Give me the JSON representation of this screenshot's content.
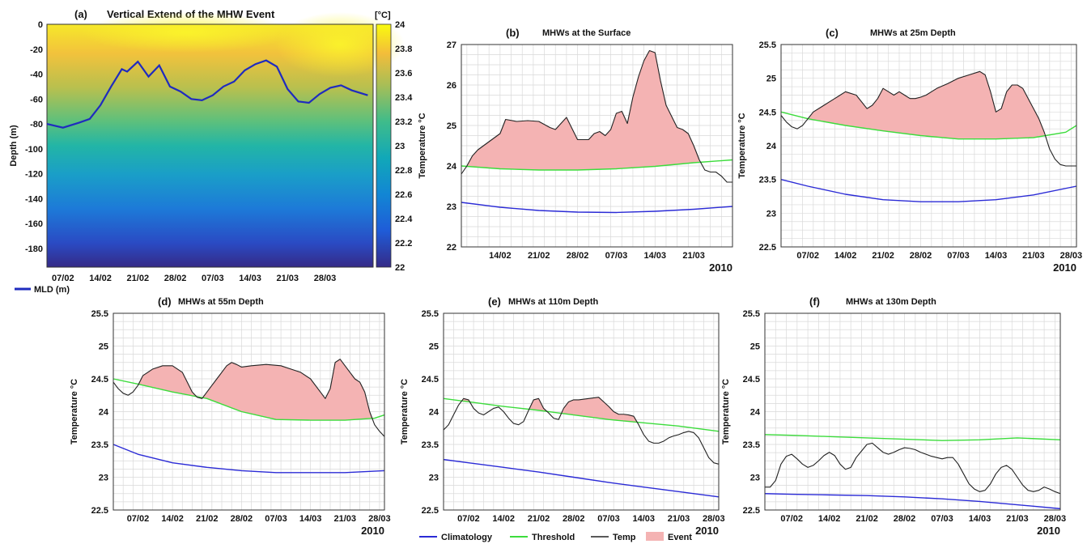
{
  "colors": {
    "climatology": "#2b2bd6",
    "threshold": "#3cdc3c",
    "temp": "#222222",
    "event": "#f4b3b3",
    "mld": "#1f2bbf"
  },
  "chart_data": [
    {
      "id": "a",
      "type": "heatmap",
      "panel_label": "(a)",
      "title": "Vertical Extend of the MHW Event",
      "ylabel": "Depth (m)",
      "yticks": [
        0,
        -20,
        -40,
        -60,
        -80,
        -100,
        -120,
        -140,
        -160,
        -180
      ],
      "ylim": [
        -195,
        0
      ],
      "xticks": [
        "07/02",
        "14/02",
        "21/02",
        "28/02",
        "07/03",
        "14/03",
        "21/03",
        "28/03"
      ],
      "xlim_days": [
        0,
        61
      ],
      "xtick_days": [
        3,
        10,
        17,
        24,
        31,
        38,
        45,
        52
      ],
      "colorbar": {
        "label": "[°C]",
        "min": 22,
        "max": 24,
        "ticks": [
          "24",
          "23.8",
          "23.6",
          "23.4",
          "23.2",
          "23",
          "22.8",
          "22.6",
          "22.4",
          "22.2",
          "22"
        ]
      },
      "legend": [
        "MLD (m)"
      ],
      "mld": {
        "days": [
          0,
          3,
          6,
          8,
          10,
          12,
          14,
          15,
          17,
          19,
          21,
          23,
          25,
          27,
          29,
          31,
          33,
          35,
          37,
          39,
          41,
          43,
          45,
          47,
          49,
          51,
          53,
          55,
          57,
          60
        ],
        "depth": [
          -80,
          -83,
          -79,
          -76,
          -65,
          -50,
          -36,
          -38,
          -30,
          -42,
          -33,
          -50,
          -54,
          -60,
          -61,
          -57,
          -50,
          -46,
          -37,
          -32,
          -29,
          -34,
          -52,
          -62,
          -63,
          -56,
          -51,
          -49,
          -53,
          -57
        ]
      }
    },
    {
      "id": "b",
      "type": "line",
      "panel_label": "(b)",
      "title": "MHWs at the Surface",
      "ylabel": "Temperature °C",
      "year": "2010",
      "ylim": [
        22,
        27
      ],
      "yticks": [
        "22",
        "23",
        "24",
        "25",
        "26",
        "27"
      ],
      "xticks": [
        "14/02",
        "21/02",
        "28/02",
        "07/03",
        "14/03",
        "21/03"
      ],
      "xlim_days": [
        7,
        56
      ],
      "xtick_days": [
        14,
        21,
        28,
        35,
        42,
        49
      ],
      "series": [
        {
          "name": "Climatology",
          "x": [
            7,
            14,
            21,
            28,
            35,
            42,
            49,
            56
          ],
          "values": [
            23.1,
            22.98,
            22.9,
            22.86,
            22.85,
            22.88,
            22.93,
            23.0
          ]
        },
        {
          "name": "Threshold",
          "x": [
            7,
            14,
            21,
            28,
            35,
            42,
            49,
            56
          ],
          "values": [
            24.0,
            23.93,
            23.9,
            23.9,
            23.93,
            23.99,
            24.08,
            24.15
          ]
        },
        {
          "name": "Temp",
          "x": [
            7,
            8,
            9,
            10,
            11,
            12,
            13,
            14,
            15,
            17,
            19,
            21,
            23,
            24,
            26,
            28,
            30,
            31,
            32,
            33,
            34,
            35,
            36,
            37,
            38,
            39,
            40,
            41,
            42,
            43,
            44,
            46,
            47,
            48,
            49,
            50,
            51,
            52,
            53,
            54,
            55,
            56
          ],
          "values": [
            23.8,
            24.0,
            24.25,
            24.4,
            24.5,
            24.6,
            24.7,
            24.8,
            25.15,
            25.1,
            25.12,
            25.1,
            24.95,
            24.9,
            25.2,
            24.65,
            24.65,
            24.8,
            24.85,
            24.75,
            24.9,
            25.3,
            25.35,
            25.05,
            25.7,
            26.2,
            26.6,
            26.85,
            26.8,
            26.1,
            25.5,
            24.95,
            24.9,
            24.8,
            24.5,
            24.15,
            23.9,
            23.85,
            23.85,
            23.75,
            23.6,
            23.6
          ]
        }
      ]
    },
    {
      "id": "c",
      "type": "line",
      "panel_label": "(c)",
      "title": "MHWs at 25m Depth",
      "ylabel": "Temperature °C",
      "year": "2010",
      "ylim": [
        22.5,
        25.5
      ],
      "yticks": [
        "22.5",
        "23",
        "23.5",
        "24",
        "24.5",
        "25",
        "25.5"
      ],
      "xticks": [
        "07/02",
        "14/02",
        "21/02",
        "28/02",
        "07/03",
        "14/03",
        "21/03",
        "28/03"
      ],
      "xlim_days": [
        2,
        57
      ],
      "xtick_days": [
        7,
        14,
        21,
        28,
        35,
        42,
        49,
        56
      ],
      "series": [
        {
          "name": "Climatology",
          "x": [
            2,
            7,
            14,
            21,
            28,
            35,
            42,
            49,
            57
          ],
          "values": [
            23.5,
            23.4,
            23.28,
            23.2,
            23.17,
            23.17,
            23.2,
            23.27,
            23.4
          ]
        },
        {
          "name": "Threshold",
          "x": [
            2,
            7,
            14,
            21,
            28,
            35,
            42,
            49,
            55,
            57
          ],
          "values": [
            24.5,
            24.4,
            24.3,
            24.22,
            24.15,
            24.1,
            24.1,
            24.12,
            24.2,
            24.3
          ]
        },
        {
          "name": "Temp",
          "x": [
            2,
            3,
            4,
            5,
            6,
            7,
            8,
            10,
            11,
            12,
            13,
            14,
            16,
            18,
            19,
            20,
            21,
            22,
            23,
            24,
            25,
            26,
            27,
            28,
            29,
            30,
            31,
            33,
            35,
            37,
            39,
            40,
            41,
            42,
            43,
            44,
            45,
            46,
            47,
            48,
            49,
            50,
            51,
            52,
            53,
            54,
            55,
            56,
            57
          ],
          "values": [
            24.45,
            24.35,
            24.28,
            24.25,
            24.3,
            24.4,
            24.5,
            24.6,
            24.65,
            24.7,
            24.75,
            24.8,
            24.75,
            24.55,
            24.6,
            24.7,
            24.85,
            24.8,
            24.75,
            24.8,
            24.75,
            24.7,
            24.7,
            24.72,
            24.75,
            24.8,
            24.85,
            24.92,
            25.0,
            25.05,
            25.1,
            25.05,
            24.8,
            24.5,
            24.55,
            24.8,
            24.9,
            24.9,
            24.85,
            24.7,
            24.55,
            24.4,
            24.2,
            23.95,
            23.8,
            23.72,
            23.7,
            23.7,
            23.7
          ]
        }
      ]
    },
    {
      "id": "d",
      "type": "line",
      "panel_label": "(d)",
      "title": "MHWs at 55m Depth",
      "ylabel": "Temperature °C",
      "year": "2010",
      "ylim": [
        22.5,
        25.5
      ],
      "yticks": [
        "22.5",
        "23",
        "23.5",
        "24",
        "24.5",
        "25",
        "25.5"
      ],
      "xticks": [
        "07/02",
        "14/02",
        "21/02",
        "28/02",
        "07/03",
        "14/03",
        "21/03",
        "28/03"
      ],
      "xlim_days": [
        2,
        57
      ],
      "xtick_days": [
        7,
        14,
        21,
        28,
        35,
        42,
        49,
        56
      ],
      "series": [
        {
          "name": "Climatology",
          "x": [
            2,
            7,
            14,
            21,
            28,
            35,
            42,
            49,
            57
          ],
          "values": [
            23.5,
            23.35,
            23.22,
            23.15,
            23.1,
            23.07,
            23.07,
            23.07,
            23.1
          ]
        },
        {
          "name": "Threshold",
          "x": [
            2,
            7,
            14,
            21,
            28,
            35,
            42,
            49,
            55,
            57
          ],
          "values": [
            24.5,
            24.42,
            24.3,
            24.2,
            24.0,
            23.88,
            23.87,
            23.87,
            23.9,
            23.95
          ]
        },
        {
          "name": "Temp",
          "x": [
            2,
            3,
            4,
            5,
            6,
            7,
            8,
            9,
            10,
            12,
            14,
            16,
            17,
            18,
            19,
            20,
            21,
            22,
            23,
            24,
            25,
            26,
            27,
            28,
            30,
            33,
            36,
            38,
            40,
            42,
            44,
            45,
            46,
            47,
            48,
            49,
            50,
            51,
            52,
            53,
            54,
            55,
            56,
            57
          ],
          "values": [
            24.45,
            24.35,
            24.28,
            24.25,
            24.3,
            24.4,
            24.55,
            24.6,
            24.65,
            24.7,
            24.7,
            24.6,
            24.45,
            24.3,
            24.22,
            24.2,
            24.3,
            24.4,
            24.5,
            24.6,
            24.7,
            24.75,
            24.72,
            24.68,
            24.7,
            24.72,
            24.7,
            24.65,
            24.6,
            24.5,
            24.3,
            24.2,
            24.35,
            24.75,
            24.8,
            24.7,
            24.6,
            24.5,
            24.45,
            24.3,
            24.0,
            23.8,
            23.7,
            23.62
          ]
        }
      ]
    },
    {
      "id": "e",
      "type": "line",
      "panel_label": "(e)",
      "title": "MHWs at 110m Depth",
      "ylabel": "Temperature °C",
      "year": "2010",
      "ylim": [
        22.5,
        25.5
      ],
      "yticks": [
        "22.5",
        "23",
        "23.5",
        "24",
        "24.5",
        "25",
        "25.5"
      ],
      "xticks": [
        "07/02",
        "14/02",
        "21/02",
        "28/02",
        "07/03",
        "14/03",
        "21/03",
        "28/03"
      ],
      "xlim_days": [
        2,
        57
      ],
      "xtick_days": [
        7,
        14,
        21,
        28,
        35,
        42,
        49,
        56
      ],
      "series": [
        {
          "name": "Climatology",
          "x": [
            2,
            7,
            14,
            21,
            28,
            35,
            42,
            49,
            57
          ],
          "values": [
            23.27,
            23.22,
            23.15,
            23.08,
            23.0,
            22.92,
            22.85,
            22.78,
            22.7
          ]
        },
        {
          "name": "Threshold",
          "x": [
            2,
            7,
            14,
            21,
            28,
            35,
            42,
            49,
            57
          ],
          "values": [
            24.2,
            24.15,
            24.08,
            24.02,
            23.95,
            23.88,
            23.83,
            23.78,
            23.7
          ]
        },
        {
          "name": "Temp",
          "x": [
            2,
            3,
            4,
            5,
            6,
            7,
            8,
            9,
            10,
            11,
            12,
            13,
            14,
            15,
            16,
            17,
            18,
            19,
            20,
            21,
            22,
            23,
            24,
            25,
            26,
            27,
            28,
            29,
            31,
            33,
            34,
            35,
            36,
            37,
            38,
            39,
            40,
            41,
            42,
            43,
            44,
            45,
            46,
            47,
            48,
            49,
            50,
            51,
            52,
            53,
            54,
            55,
            56,
            57
          ],
          "values": [
            23.72,
            23.8,
            23.95,
            24.1,
            24.2,
            24.18,
            24.05,
            23.98,
            23.95,
            24.0,
            24.05,
            24.07,
            24.0,
            23.9,
            23.82,
            23.8,
            23.85,
            24.02,
            24.18,
            24.2,
            24.05,
            23.98,
            23.9,
            23.88,
            24.05,
            24.15,
            24.18,
            24.18,
            24.2,
            24.22,
            24.15,
            24.08,
            24.0,
            23.96,
            23.96,
            23.95,
            23.93,
            23.8,
            23.65,
            23.55,
            23.52,
            23.52,
            23.55,
            23.6,
            23.63,
            23.65,
            23.68,
            23.7,
            23.68,
            23.6,
            23.45,
            23.3,
            23.22,
            23.2
          ]
        }
      ]
    },
    {
      "id": "f",
      "type": "line",
      "panel_label": "(f)",
      "title": "MHWs at 130m Depth",
      "ylabel": "Temperature °C",
      "year": "2010",
      "ylim": [
        22.5,
        25.5
      ],
      "yticks": [
        "22.5",
        "23",
        "23.5",
        "24",
        "24.5",
        "25",
        "25.5"
      ],
      "xticks": [
        "07/02",
        "14/02",
        "21/02",
        "28/02",
        "07/03",
        "14/03",
        "21/03",
        "28/03"
      ],
      "xlim_days": [
        2,
        57
      ],
      "xtick_days": [
        7,
        14,
        21,
        28,
        35,
        42,
        49,
        56
      ],
      "series": [
        {
          "name": "Climatology",
          "x": [
            2,
            7,
            14,
            21,
            28,
            35,
            42,
            49,
            57
          ],
          "values": [
            22.75,
            22.74,
            22.73,
            22.72,
            22.7,
            22.67,
            22.63,
            22.58,
            22.52
          ]
        },
        {
          "name": "Threshold",
          "x": [
            2,
            7,
            14,
            21,
            28,
            35,
            42,
            49,
            57
          ],
          "values": [
            23.65,
            23.64,
            23.62,
            23.6,
            23.58,
            23.56,
            23.57,
            23.6,
            23.57
          ]
        },
        {
          "name": "Temp",
          "x": [
            2,
            3,
            4,
            5,
            6,
            7,
            8,
            9,
            10,
            11,
            12,
            13,
            14,
            15,
            16,
            17,
            18,
            19,
            20,
            21,
            22,
            23,
            24,
            25,
            26,
            27,
            28,
            29,
            30,
            31,
            32,
            33,
            34,
            35,
            36,
            37,
            38,
            39,
            40,
            41,
            42,
            43,
            44,
            45,
            46,
            47,
            48,
            49,
            50,
            51,
            52,
            53,
            54,
            55,
            56,
            57
          ],
          "values": [
            22.85,
            22.85,
            22.95,
            23.2,
            23.32,
            23.35,
            23.28,
            23.2,
            23.15,
            23.18,
            23.25,
            23.33,
            23.38,
            23.33,
            23.2,
            23.12,
            23.15,
            23.3,
            23.4,
            23.5,
            23.52,
            23.45,
            23.38,
            23.35,
            23.38,
            23.42,
            23.45,
            23.44,
            23.42,
            23.38,
            23.35,
            23.32,
            23.3,
            23.28,
            23.3,
            23.3,
            23.2,
            23.05,
            22.9,
            22.82,
            22.78,
            22.8,
            22.9,
            23.05,
            23.15,
            23.18,
            23.12,
            23.0,
            22.88,
            22.8,
            22.78,
            22.8,
            22.85,
            22.82,
            22.78,
            22.75
          ]
        }
      ]
    }
  ],
  "legend": {
    "items": [
      {
        "label": "Climatology",
        "key": "climatology"
      },
      {
        "label": "Threshold",
        "key": "threshold"
      },
      {
        "label": "Temp",
        "key": "temp"
      },
      {
        "label": "Event",
        "key": "event"
      }
    ]
  }
}
